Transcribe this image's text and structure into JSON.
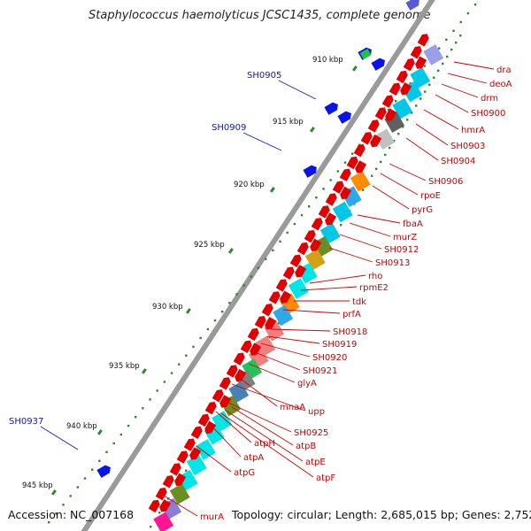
{
  "title": "Staphylococcus haemolyticus JCSC1435, complete genome",
  "footer": {
    "accession": "Accession: NC_007168",
    "summary": "Topology: circular; Length: 2,685,015 bp; Genes: 2,752"
  },
  "kbp_labels": [
    "910 kbp",
    "915 kbp",
    "920 kbp",
    "925 kbp",
    "930 kbp",
    "935 kbp",
    "940 kbp",
    "945 kbp"
  ],
  "gene_labels": [
    "dra",
    "deoA",
    "drm",
    "SH0900",
    "hmrA",
    "SH0903",
    "SH0904",
    "SH0906",
    "rpoE",
    "pyrG",
    "fbaA",
    "murZ",
    "SH0912",
    "SH0913",
    "rho",
    "rpmE2",
    "tdk",
    "prfA",
    "SH0918",
    "SH0919",
    "SH0920",
    "SH0921",
    "glyA",
    "mnaA",
    "upp",
    "SH0925",
    "atpB",
    "atpE",
    "atpF",
    "atpH",
    "atpA",
    "atpG",
    "murA"
  ],
  "blue_labels": [
    "SH0905",
    "SH0909",
    "SH0937"
  ],
  "colors": {
    "gene_red": "#e00000",
    "backbone": "#888888",
    "label_red": "#c80000",
    "label_blue": "#1414b4",
    "dot_green": "#2a8a2a"
  }
}
